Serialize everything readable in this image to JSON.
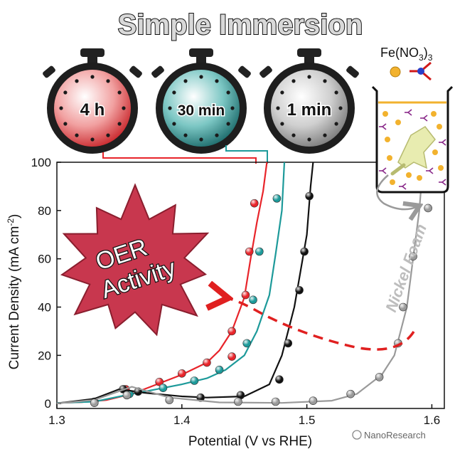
{
  "headline": "Simple Immersion",
  "timers": [
    {
      "label": "4 h",
      "color": "#e8484a"
    },
    {
      "label": "30 min",
      "color": "#1f8a8a"
    },
    {
      "label": "1 min",
      "color": "#9a9a9a"
    }
  ],
  "beaker": {
    "formula_main": "Fe(NO",
    "formula_sub1": "3",
    "formula_close": ")",
    "formula_sub2": "3"
  },
  "burst": {
    "line1": "OER",
    "line2": "Activity",
    "color": "#c8374e"
  },
  "foam_label": "Nickel Foam",
  "watermark": "NanoResearch",
  "chart_data": {
    "type": "line",
    "title": "",
    "xlabel": "Potential (V vs RHE)",
    "ylabel_main": "Current Density (mA cm",
    "ylabel_sup": "-2",
    "ylabel_close": ")",
    "xlim": [
      1.3,
      1.61
    ],
    "ylim": [
      -2,
      100
    ],
    "xticks": [
      1.3,
      1.4,
      1.5,
      1.6
    ],
    "xtick_labels": [
      "1.3",
      "1.4",
      "1.5",
      "1.6"
    ],
    "yticks": [
      0,
      20,
      40,
      60,
      80,
      100
    ],
    "ytick_labels": [
      "0",
      "20",
      "40",
      "60",
      "80",
      "100"
    ],
    "series": [
      {
        "name": "4 h",
        "color": "#e8242a",
        "line": [
          [
            1.3,
            0.3
          ],
          [
            1.32,
            0.6
          ],
          [
            1.34,
            1.5
          ],
          [
            1.36,
            4
          ],
          [
            1.38,
            8
          ],
          [
            1.4,
            12
          ],
          [
            1.42,
            17
          ],
          [
            1.43,
            22
          ],
          [
            1.44,
            30
          ],
          [
            1.45,
            44
          ],
          [
            1.455,
            60
          ],
          [
            1.46,
            75
          ],
          [
            1.465,
            88
          ],
          [
            1.468,
            100
          ]
        ],
        "markers": [
          [
            1.355,
            6
          ],
          [
            1.382,
            9
          ],
          [
            1.4,
            12.5
          ],
          [
            1.42,
            17
          ],
          [
            1.44,
            19.5
          ],
          [
            1.44,
            30
          ],
          [
            1.451,
            45
          ],
          [
            1.454,
            63
          ],
          [
            1.458,
            83
          ]
        ]
      },
      {
        "name": "30 min",
        "color": "#1d9a9a",
        "line": [
          [
            1.3,
            0.3
          ],
          [
            1.33,
            0.8
          ],
          [
            1.36,
            4
          ],
          [
            1.38,
            6
          ],
          [
            1.4,
            8
          ],
          [
            1.42,
            10.5
          ],
          [
            1.435,
            14
          ],
          [
            1.45,
            20
          ],
          [
            1.46,
            30
          ],
          [
            1.47,
            45
          ],
          [
            1.475,
            62
          ],
          [
            1.48,
            80
          ],
          [
            1.482,
            100
          ]
        ],
        "markers": [
          [
            1.33,
            0.8
          ],
          [
            1.358,
            4
          ],
          [
            1.385,
            6.5
          ],
          [
            1.41,
            9.5
          ],
          [
            1.43,
            14
          ],
          [
            1.452,
            25
          ],
          [
            1.457,
            43
          ],
          [
            1.462,
            63
          ],
          [
            1.476,
            85
          ]
        ]
      },
      {
        "name": "1 min",
        "color": "#111111",
        "line": [
          [
            1.3,
            0.1
          ],
          [
            1.33,
            2
          ],
          [
            1.35,
            6
          ],
          [
            1.37,
            4.5
          ],
          [
            1.4,
            3
          ],
          [
            1.42,
            2.5
          ],
          [
            1.45,
            3
          ],
          [
            1.47,
            8
          ],
          [
            1.48,
            20
          ],
          [
            1.49,
            40
          ],
          [
            1.5,
            70
          ],
          [
            1.503,
            90
          ],
          [
            1.505,
            100
          ]
        ],
        "markers": [
          [
            1.353,
            6
          ],
          [
            1.365,
            5
          ],
          [
            1.415,
            2.5
          ],
          [
            1.447,
            3.5
          ],
          [
            1.478,
            10
          ],
          [
            1.485,
            25
          ],
          [
            1.494,
            47
          ],
          [
            1.498,
            63
          ],
          [
            1.502,
            86
          ]
        ]
      },
      {
        "name": "Nickel Foam",
        "color": "#9a9a9a",
        "line": [
          [
            1.3,
            0.1
          ],
          [
            1.33,
            1.5
          ],
          [
            1.36,
            7
          ],
          [
            1.39,
            2.5
          ],
          [
            1.43,
            0.5
          ],
          [
            1.48,
            0.3
          ],
          [
            1.52,
            1.2
          ],
          [
            1.54,
            4
          ],
          [
            1.56,
            12
          ],
          [
            1.57,
            20
          ],
          [
            1.58,
            40
          ],
          [
            1.585,
            60
          ],
          [
            1.59,
            80
          ],
          [
            1.593,
            100
          ]
        ],
        "markers": [
          [
            1.33,
            0.3
          ],
          [
            1.356,
            3.5
          ],
          [
            1.39,
            1.5
          ],
          [
            1.445,
            0.8
          ],
          [
            1.475,
            0.8
          ],
          [
            1.505,
            1.2
          ],
          [
            1.535,
            4
          ],
          [
            1.558,
            11
          ],
          [
            1.573,
            25
          ],
          [
            1.577,
            40
          ],
          [
            1.585,
            61
          ],
          [
            1.597,
            81
          ]
        ]
      }
    ]
  }
}
